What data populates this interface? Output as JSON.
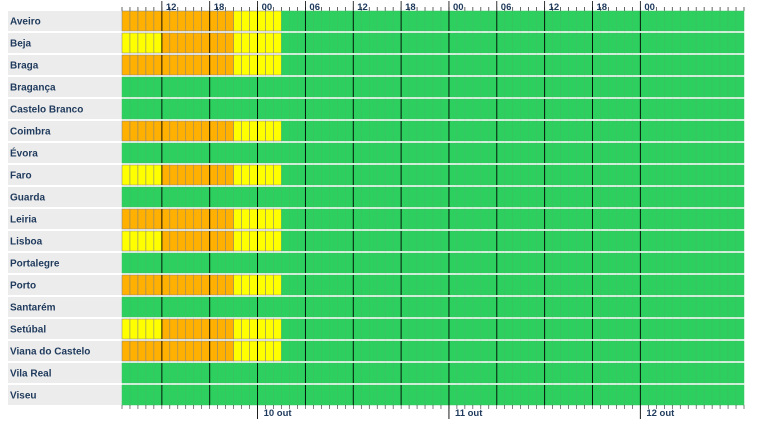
{
  "chart_data": {
    "type": "heatmap",
    "title": "",
    "hours_per_cell": 1,
    "time_ticks": [
      "12",
      "18",
      "00",
      "06",
      "12",
      "18",
      "00",
      "06",
      "12",
      "18",
      "00"
    ],
    "date_labels": [
      "10 out",
      "11 out",
      "12 out"
    ],
    "levels": [
      "green",
      "yellow",
      "orange"
    ],
    "colors": {
      "green": "#2dcf5f",
      "yellow": "#ffff00",
      "orange": "#ffb000",
      "label_bg": "#ececec",
      "text": "#1f3a5c",
      "grid": "#000000"
    },
    "districts": [
      {
        "name": "Aveiro",
        "periods": [
          {
            "level": "orange",
            "hours": 14
          },
          {
            "level": "yellow",
            "hours": 6
          },
          {
            "level": "green",
            "hours": 58
          }
        ]
      },
      {
        "name": "Beja",
        "periods": [
          {
            "level": "yellow",
            "hours": 5
          },
          {
            "level": "orange",
            "hours": 9
          },
          {
            "level": "yellow",
            "hours": 6
          },
          {
            "level": "green",
            "hours": 58
          }
        ]
      },
      {
        "name": "Braga",
        "periods": [
          {
            "level": "orange",
            "hours": 14
          },
          {
            "level": "yellow",
            "hours": 6
          },
          {
            "level": "green",
            "hours": 58
          }
        ]
      },
      {
        "name": "Bragança",
        "periods": [
          {
            "level": "green",
            "hours": 78
          }
        ]
      },
      {
        "name": "Castelo Branco",
        "periods": [
          {
            "level": "green",
            "hours": 78
          }
        ]
      },
      {
        "name": "Coimbra",
        "periods": [
          {
            "level": "orange",
            "hours": 14
          },
          {
            "level": "yellow",
            "hours": 6
          },
          {
            "level": "green",
            "hours": 58
          }
        ]
      },
      {
        "name": "Évora",
        "periods": [
          {
            "level": "green",
            "hours": 78
          }
        ]
      },
      {
        "name": "Faro",
        "periods": [
          {
            "level": "yellow",
            "hours": 5
          },
          {
            "level": "orange",
            "hours": 9
          },
          {
            "level": "yellow",
            "hours": 6
          },
          {
            "level": "green",
            "hours": 58
          }
        ]
      },
      {
        "name": "Guarda",
        "periods": [
          {
            "level": "green",
            "hours": 78
          }
        ]
      },
      {
        "name": "Leiria",
        "periods": [
          {
            "level": "orange",
            "hours": 14
          },
          {
            "level": "yellow",
            "hours": 6
          },
          {
            "level": "green",
            "hours": 58
          }
        ]
      },
      {
        "name": "Lisboa",
        "periods": [
          {
            "level": "yellow",
            "hours": 5
          },
          {
            "level": "orange",
            "hours": 9
          },
          {
            "level": "yellow",
            "hours": 6
          },
          {
            "level": "green",
            "hours": 58
          }
        ]
      },
      {
        "name": "Portalegre",
        "periods": [
          {
            "level": "green",
            "hours": 78
          }
        ]
      },
      {
        "name": "Porto",
        "periods": [
          {
            "level": "orange",
            "hours": 14
          },
          {
            "level": "yellow",
            "hours": 6
          },
          {
            "level": "green",
            "hours": 58
          }
        ]
      },
      {
        "name": "Santarém",
        "periods": [
          {
            "level": "green",
            "hours": 78
          }
        ]
      },
      {
        "name": "Setúbal",
        "periods": [
          {
            "level": "yellow",
            "hours": 5
          },
          {
            "level": "orange",
            "hours": 9
          },
          {
            "level": "yellow",
            "hours": 6
          },
          {
            "level": "green",
            "hours": 58
          }
        ]
      },
      {
        "name": "Viana do Castelo",
        "periods": [
          {
            "level": "orange",
            "hours": 14
          },
          {
            "level": "yellow",
            "hours": 6
          },
          {
            "level": "green",
            "hours": 58
          }
        ]
      },
      {
        "name": "Vila Real",
        "periods": [
          {
            "level": "green",
            "hours": 78
          }
        ]
      },
      {
        "name": "Viseu",
        "periods": [
          {
            "level": "green",
            "hours": 78
          }
        ]
      }
    ]
  }
}
